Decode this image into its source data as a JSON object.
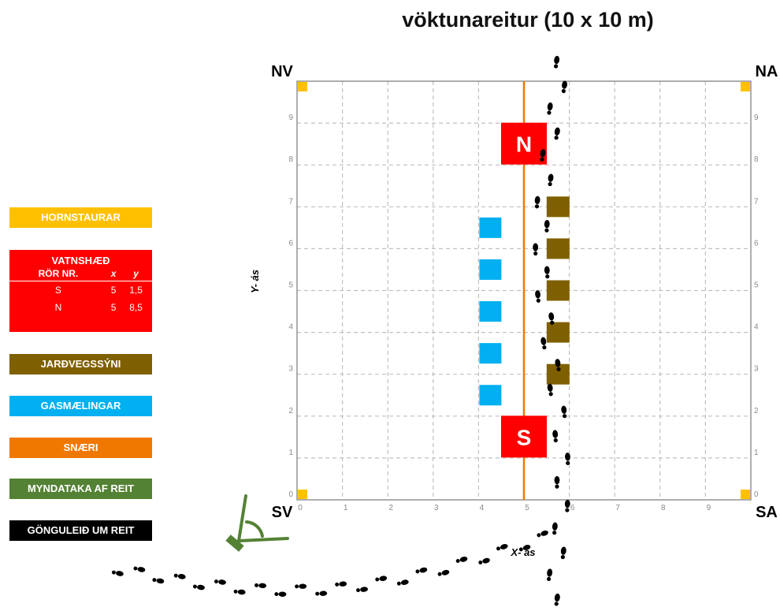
{
  "title": "vöktunareitur (10 x 10 m)",
  "corners": {
    "nw": "NV",
    "ne": "NA",
    "sw": "SV",
    "se": "SA"
  },
  "axes": {
    "x_label": "X- ás",
    "y_label": "Y- ás",
    "x_ticks": [
      "0",
      "1",
      "2",
      "3",
      "4",
      "5",
      "6",
      "7",
      "8",
      "9"
    ],
    "y_ticks": [
      "0",
      "1",
      "2",
      "3",
      "4",
      "5",
      "6",
      "7",
      "8",
      "9"
    ]
  },
  "legend": {
    "hornstaurar": "HORNSTAURAR",
    "vatnshaed": {
      "title": "VATNSHÆÐ",
      "headers": [
        "RÖR NR.",
        "x",
        "y"
      ],
      "rows": [
        [
          "S",
          "5",
          "1,5"
        ],
        [
          "N",
          "5",
          "8,5"
        ]
      ]
    },
    "jardvegssyni": "JARÐVEGSSÝNI",
    "gasmaelingar": "GASMÆLINGAR",
    "snaeri": "SNÆRI",
    "myndataka": "MYNDATAKA AF REIT",
    "gongulei": "GÖNGULEIÐ UM REIT"
  },
  "colors": {
    "hornstaurar": "#ffc000",
    "vatnshaed": "#ff0000",
    "jardvegssyni": "#7f6000",
    "gasmaelingar": "#00b0f0",
    "snaeri": "#f07800",
    "myndataka": "#548235",
    "gongulei": "#000000"
  },
  "markers": {
    "water_tubes": [
      {
        "label": "S",
        "x": 5,
        "y": 1.5
      },
      {
        "label": "N",
        "x": 5,
        "y": 8.5
      }
    ],
    "soil_samples_y": [
      3,
      4,
      5,
      6,
      7
    ],
    "gas_measurements_y": [
      2.5,
      3.5,
      4.5,
      5.5,
      6.5
    ],
    "string_x": 5,
    "plot_size_m": 10
  },
  "icons": {
    "camera": "camera-tripod-icon",
    "footprints": "footprints-icon"
  }
}
